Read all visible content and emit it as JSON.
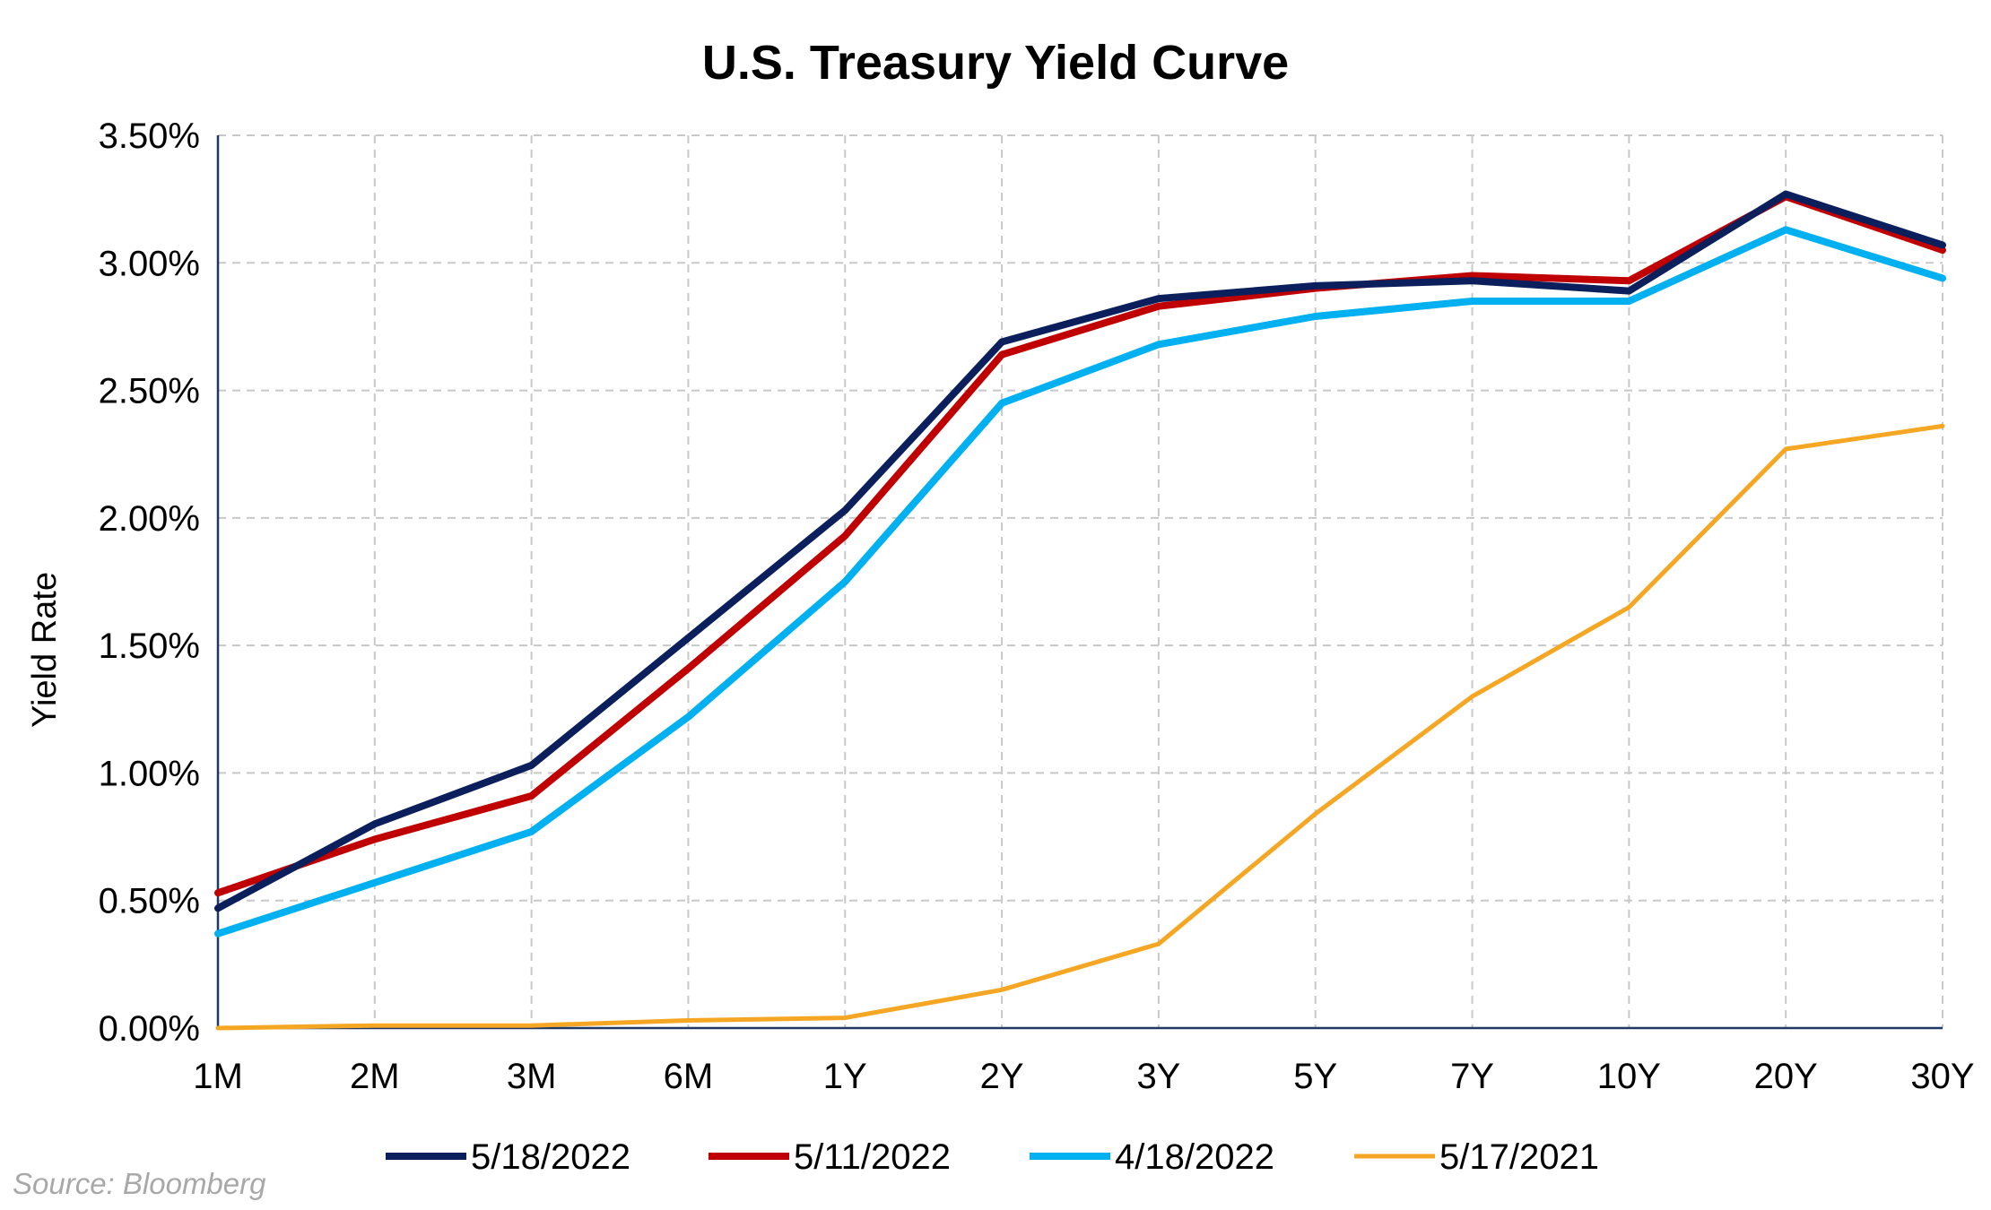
{
  "chart_data": {
    "type": "line",
    "title": "U.S. Treasury Yield Curve",
    "ylabel": "Yield Rate",
    "xlabel": "",
    "categories": [
      "1M",
      "2M",
      "3M",
      "6M",
      "1Y",
      "2Y",
      "3Y",
      "5Y",
      "7Y",
      "10Y",
      "20Y",
      "30Y"
    ],
    "yticks": [
      "0.00%",
      "0.50%",
      "1.00%",
      "1.50%",
      "2.00%",
      "2.50%",
      "3.00%",
      "3.50%"
    ],
    "ylim": [
      0,
      3.5
    ],
    "grid": true,
    "legend_position": "bottom",
    "series": [
      {
        "name": "5/18/2022",
        "color": "#0b1f5c",
        "values": [
          0.47,
          0.8,
          1.03,
          1.53,
          2.03,
          2.69,
          2.86,
          2.91,
          2.93,
          2.89,
          3.27,
          3.07
        ]
      },
      {
        "name": "5/11/2022",
        "color": "#c00000",
        "values": [
          0.53,
          0.74,
          0.91,
          1.41,
          1.93,
          2.64,
          2.83,
          2.9,
          2.95,
          2.93,
          3.26,
          3.05
        ]
      },
      {
        "name": "4/18/2022",
        "color": "#00b0f0",
        "values": [
          0.37,
          0.57,
          0.77,
          1.22,
          1.75,
          2.45,
          2.68,
          2.79,
          2.85,
          2.85,
          3.13,
          2.94
        ]
      },
      {
        "name": "5/17/2021",
        "color": "#f5a623",
        "values": [
          0.0,
          0.01,
          0.01,
          0.03,
          0.04,
          0.15,
          0.33,
          0.84,
          1.3,
          1.65,
          2.27,
          2.36
        ]
      }
    ],
    "source": "Source: Bloomberg"
  }
}
